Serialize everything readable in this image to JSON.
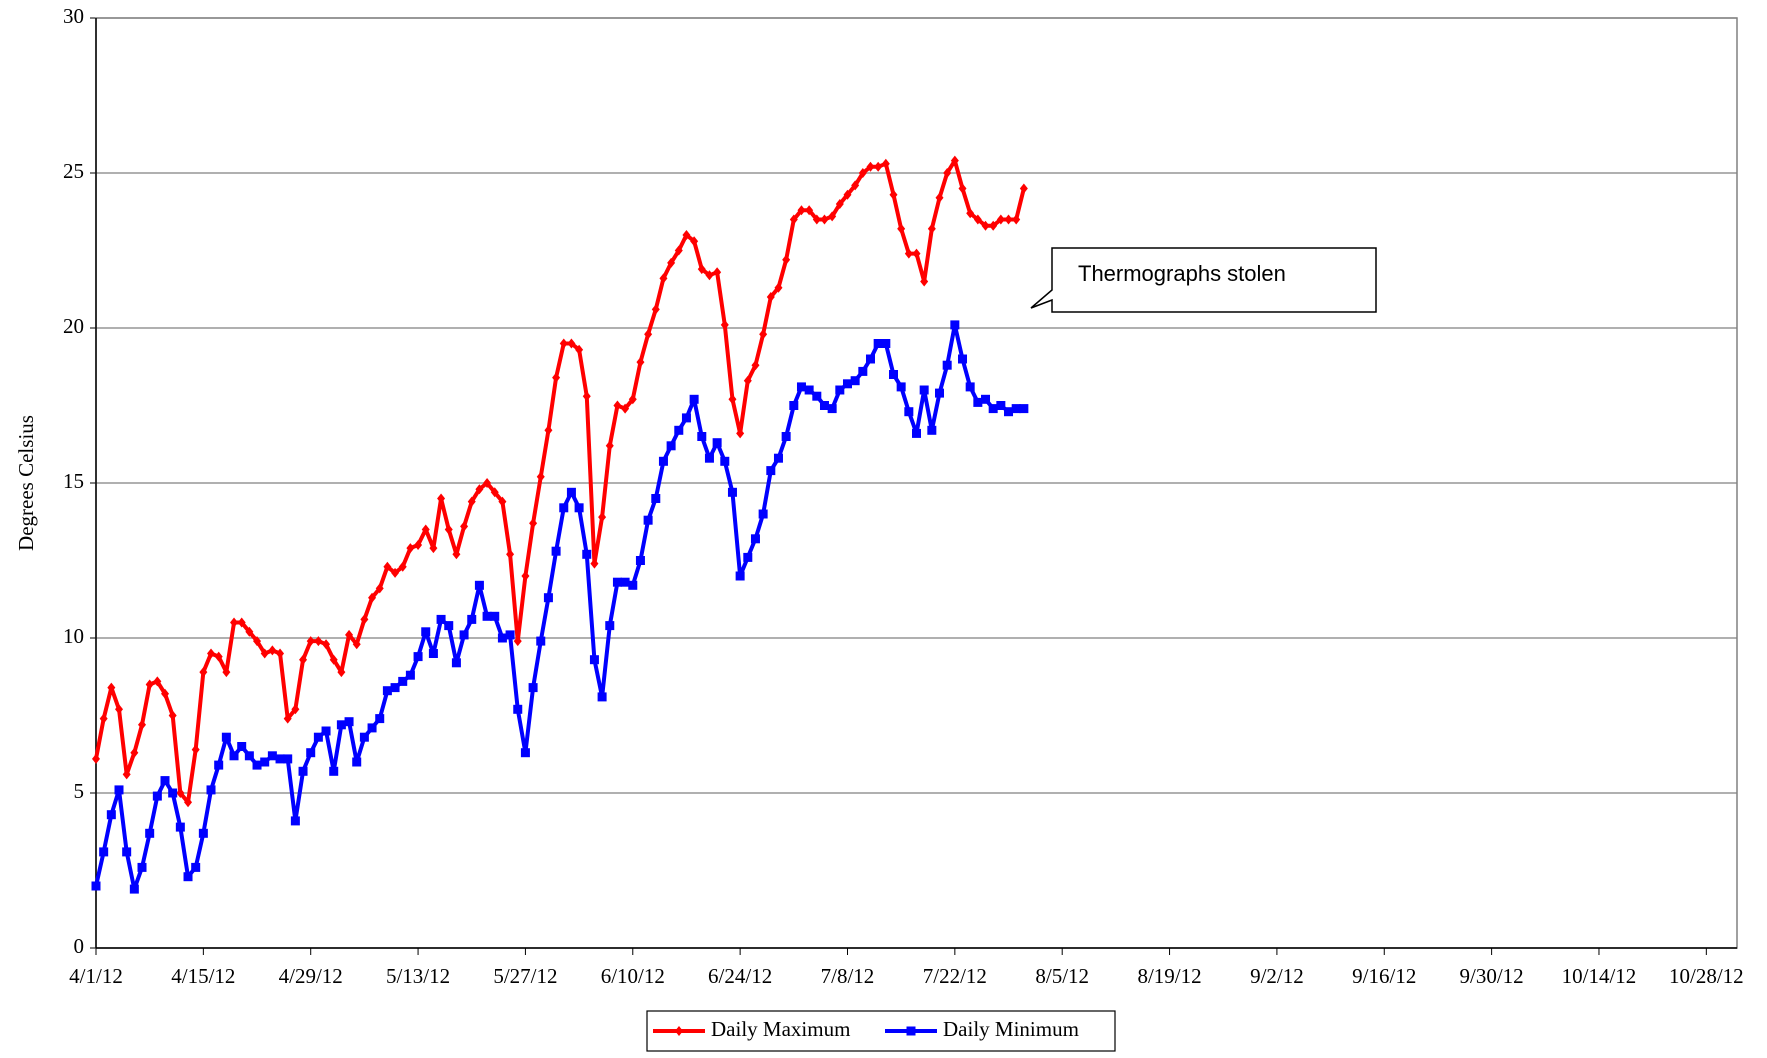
{
  "chart_data": {
    "type": "line",
    "y_label": "Degrees Celsius",
    "annotation": "Thermographs stolen",
    "x": [
      "4/1/12",
      "4/2/12",
      "4/3/12",
      "4/4/12",
      "4/5/12",
      "4/6/12",
      "4/7/12",
      "4/8/12",
      "4/9/12",
      "4/10/12",
      "4/11/12",
      "4/12/12",
      "4/13/12",
      "4/14/12",
      "4/15/12",
      "4/16/12",
      "4/17/12",
      "4/18/12",
      "4/19/12",
      "4/20/12",
      "4/21/12",
      "4/22/12",
      "4/23/12",
      "4/24/12",
      "4/25/12",
      "4/26/12",
      "4/27/12",
      "4/28/12",
      "4/29/12",
      "4/30/12",
      "5/1/12",
      "5/2/12",
      "5/3/12",
      "5/4/12",
      "5/5/12",
      "5/6/12",
      "5/7/12",
      "5/8/12",
      "5/9/12",
      "5/10/12",
      "5/11/12",
      "5/12/12",
      "5/13/12",
      "5/14/12",
      "5/15/12",
      "5/16/12",
      "5/17/12",
      "5/18/12",
      "5/19/12",
      "5/20/12",
      "5/21/12",
      "5/22/12",
      "5/23/12",
      "5/24/12",
      "5/25/12",
      "5/26/12",
      "5/27/12",
      "5/28/12",
      "5/29/12",
      "5/30/12",
      "5/31/12",
      "6/1/12",
      "6/2/12",
      "6/3/12",
      "6/4/12",
      "6/5/12",
      "6/6/12",
      "6/7/12",
      "6/8/12",
      "6/9/12",
      "6/10/12",
      "6/11/12",
      "6/12/12",
      "6/13/12",
      "6/14/12",
      "6/15/12",
      "6/16/12",
      "6/17/12",
      "6/18/12",
      "6/19/12",
      "6/20/12",
      "6/21/12",
      "6/22/12",
      "6/23/12",
      "6/24/12",
      "6/25/12",
      "6/26/12",
      "6/27/12",
      "6/28/12",
      "6/29/12",
      "6/30/12",
      "7/1/12",
      "7/2/12",
      "7/3/12",
      "7/4/12",
      "7/5/12",
      "7/6/12",
      "7/7/12",
      "7/8/12",
      "7/9/12",
      "7/10/12",
      "7/11/12",
      "7/12/12",
      "7/13/12",
      "7/14/12",
      "7/15/12",
      "7/16/12",
      "7/17/12",
      "7/18/12",
      "7/19/12",
      "7/20/12",
      "7/21/12",
      "7/22/12",
      "7/23/12",
      "7/24/12",
      "7/25/12",
      "7/26/12",
      "7/27/12",
      "7/28/12",
      "7/29/12",
      "7/30/12",
      "7/31/12"
    ],
    "series": [
      {
        "name": "Daily Maximum",
        "color": "#ff0000",
        "marker": "diamond",
        "values": [
          6.1,
          7.4,
          8.4,
          7.7,
          5.6,
          6.3,
          7.2,
          8.5,
          8.6,
          8.2,
          7.5,
          5.0,
          4.7,
          6.4,
          8.9,
          9.5,
          9.4,
          8.9,
          10.5,
          10.5,
          10.2,
          9.9,
          9.5,
          9.6,
          9.5,
          7.4,
          7.7,
          9.3,
          9.9,
          9.9,
          9.8,
          9.3,
          8.9,
          10.1,
          9.8,
          10.6,
          11.3,
          11.6,
          12.3,
          12.1,
          12.3,
          12.9,
          13.0,
          13.5,
          12.9,
          14.5,
          13.5,
          12.7,
          13.6,
          14.4,
          14.8,
          15.0,
          14.7,
          14.4,
          12.7,
          9.9,
          12.0,
          13.7,
          15.2,
          16.7,
          18.4,
          19.5,
          19.5,
          19.3,
          17.8,
          12.4,
          13.9,
          16.2,
          17.5,
          17.4,
          17.7,
          18.9,
          19.8,
          20.6,
          21.6,
          22.1,
          22.5,
          23.0,
          22.8,
          21.9,
          21.7,
          21.8,
          20.1,
          17.7,
          16.6,
          18.3,
          18.8,
          19.8,
          21.0,
          21.3,
          22.2,
          23.5,
          23.8,
          23.8,
          23.5,
          23.5,
          23.6,
          24.0,
          24.3,
          24.6,
          25.0,
          25.2,
          25.2,
          25.3,
          24.3,
          23.2,
          22.4,
          22.4,
          21.5,
          23.2,
          24.2,
          25.0,
          25.4,
          24.5,
          23.7,
          23.5,
          23.3,
          23.3,
          23.5,
          23.5,
          23.5,
          24.5
        ]
      },
      {
        "name": "Daily Minimum",
        "color": "#0000ff",
        "marker": "square",
        "values": [
          2.0,
          3.1,
          4.3,
          5.1,
          3.1,
          1.9,
          2.6,
          3.7,
          4.9,
          5.4,
          5.0,
          3.9,
          2.3,
          2.6,
          3.7,
          5.1,
          5.9,
          6.8,
          6.2,
          6.5,
          6.2,
          5.9,
          6.0,
          6.2,
          6.1,
          6.1,
          4.1,
          5.7,
          6.3,
          6.8,
          7.0,
          5.7,
          7.2,
          7.3,
          6.0,
          6.8,
          7.1,
          7.4,
          8.3,
          8.4,
          8.6,
          8.8,
          9.4,
          10.2,
          9.5,
          10.6,
          10.4,
          9.2,
          10.1,
          10.6,
          11.7,
          10.7,
          10.7,
          10.0,
          10.1,
          7.7,
          6.3,
          8.4,
          9.9,
          11.3,
          12.8,
          14.2,
          14.7,
          14.2,
          12.7,
          9.3,
          8.1,
          10.4,
          11.8,
          11.8,
          11.7,
          12.5,
          13.8,
          14.5,
          15.7,
          16.2,
          16.7,
          17.1,
          17.7,
          16.5,
          15.8,
          16.3,
          15.7,
          14.7,
          12.0,
          12.6,
          13.2,
          14.0,
          15.4,
          15.8,
          16.5,
          17.5,
          18.1,
          18.0,
          17.8,
          17.5,
          17.4,
          18.0,
          18.2,
          18.3,
          18.6,
          19.0,
          19.5,
          19.5,
          18.5,
          18.1,
          17.3,
          16.6,
          18.0,
          16.7,
          17.9,
          18.8,
          20.1,
          19.0,
          18.1,
          17.6,
          17.7,
          17.4,
          17.5,
          17.3,
          17.4,
          17.4
        ]
      }
    ],
    "xlim": [
      "4/1/12",
      "11/1/12"
    ],
    "xticks": [
      "4/1/12",
      "4/15/12",
      "4/29/12",
      "5/13/12",
      "5/27/12",
      "6/10/12",
      "6/24/12",
      "7/8/12",
      "7/22/12",
      "8/5/12",
      "8/19/12",
      "9/2/12",
      "9/16/12",
      "9/30/12",
      "10/14/12",
      "10/28/12"
    ],
    "ylim": [
      0,
      30
    ],
    "yticks": [
      0,
      5,
      10,
      15,
      20,
      25,
      30
    ],
    "grid": true,
    "legend": "bottom"
  }
}
